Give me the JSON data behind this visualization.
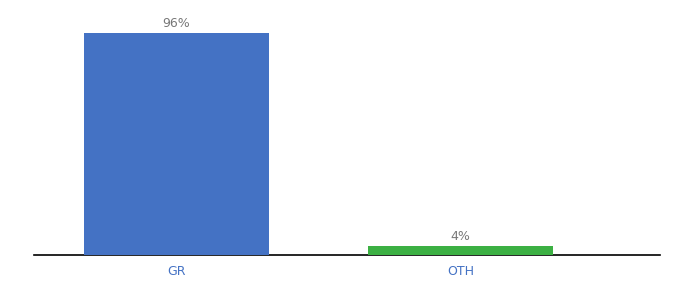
{
  "categories": [
    "GR",
    "OTH"
  ],
  "values": [
    96,
    4
  ],
  "bar_colors": [
    "#4472c4",
    "#3cb043"
  ],
  "bar_labels": [
    "96%",
    "4%"
  ],
  "ylim": [
    0,
    100
  ],
  "background_color": "#ffffff",
  "label_fontsize": 9,
  "tick_fontsize": 9,
  "bar_width": 0.65,
  "x_positions": [
    0,
    1
  ],
  "xlim": [
    -0.5,
    1.7
  ]
}
